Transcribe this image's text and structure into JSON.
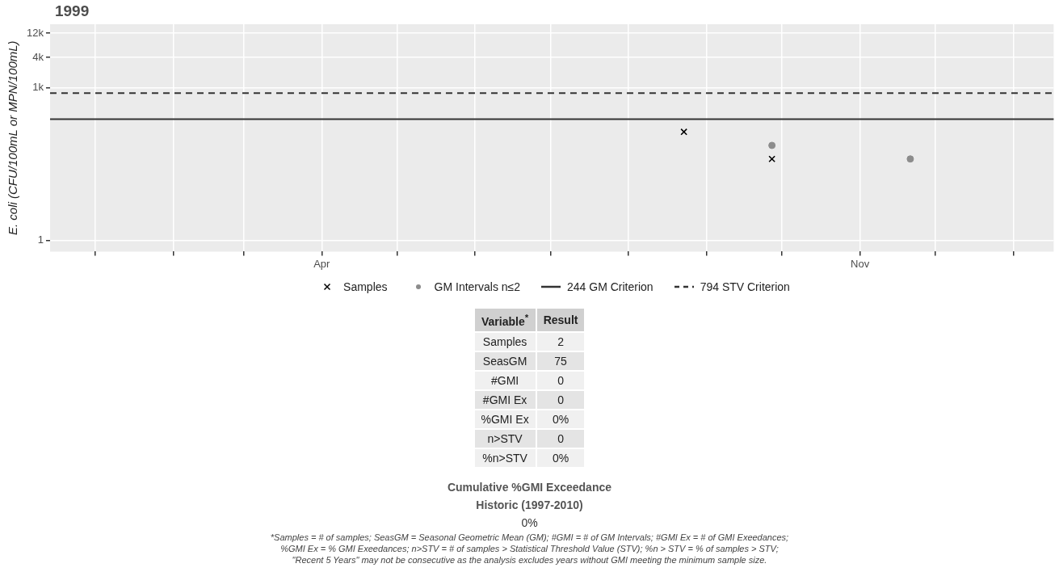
{
  "chart_data": [
    {
      "type": "scatter",
      "title": "1999",
      "ylabel": "E. coli (CFU/100mL or MPN/100mL)",
      "log": "y",
      "grid": true,
      "legend": "bottom",
      "xlim": [
        "1998-12-14",
        "2000-01-17"
      ],
      "xticks": [
        {
          "value": "1999-01-01",
          "label": null
        },
        {
          "value": "1999-02-01",
          "label": null
        },
        {
          "value": "1999-03-01",
          "label": null
        },
        {
          "value": "1999-04-01",
          "label": "Apr"
        },
        {
          "value": "1999-05-01",
          "label": null
        },
        {
          "value": "1999-06-01",
          "label": null
        },
        {
          "value": "1999-07-01",
          "label": null
        },
        {
          "value": "1999-08-01",
          "label": null
        },
        {
          "value": "1999-09-01",
          "label": null
        },
        {
          "value": "1999-10-01",
          "label": null
        },
        {
          "value": "1999-11-01",
          "label": "Nov"
        },
        {
          "value": "1999-12-01",
          "label": null
        },
        {
          "value": "2000-01-01",
          "label": null
        }
      ],
      "ylim": [
        0.64,
        18000
      ],
      "yticks": [
        1,
        {
          "value": 1000,
          "label": "1k"
        },
        {
          "value": 4000,
          "label": "4k"
        },
        {
          "value": 12000,
          "label": "12k"
        }
      ],
      "series": [
        {
          "name": "Samples",
          "marker": "cross",
          "color": "#000000",
          "x": [
            "1999-08-23",
            "1999-09-27"
          ],
          "values": [
            137,
            40
          ]
        },
        {
          "name": "GM Intervals n≤2",
          "marker": "circle",
          "color": "#8c8c8c",
          "x": [
            "1999-09-27",
            "1999-11-21"
          ],
          "values": [
            74,
            40
          ]
        }
      ],
      "ref_lines": [
        {
          "axis": "y",
          "value": 244,
          "label": "244 GM Criterion",
          "color": "#333333",
          "line_style": "solid"
        },
        {
          "axis": "y",
          "value": 794,
          "label": "794 STV Criterion",
          "color": "#333333",
          "line_style": "dashed"
        }
      ]
    },
    {
      "type": "other",
      "annotations": [
        "Variable$^{*}$",
        "Result",
        "Samples",
        "2",
        "SeasGM",
        "75",
        "#GMI",
        "0",
        "#GMI Ex",
        "0",
        "%GMI Ex",
        "0%",
        "n>STV",
        "0",
        "%n>STV",
        "0%"
      ]
    },
    {
      "type": "other",
      "title": "Cumulative %GMI Exceedance",
      "subtitle": "Historic (1997-2010)",
      "annotations": [
        "0%",
        "*Samples = # of samples; SeasGM = Seasonal Geometric Mean (GM); #GMI = # of GM Intervals; #GMI Ex = # of GMI Exeedances;",
        "%GMI Ex = % GMI Exeedances; n>STV = # of samples > Statistical Threshold Value (STV); %n > STV = % of samples > STV;",
        "\"Recent 5 Years\" may not be consecutive as the analysis excludes years without GMI meeting the minimum sample size."
      ]
    }
  ]
}
